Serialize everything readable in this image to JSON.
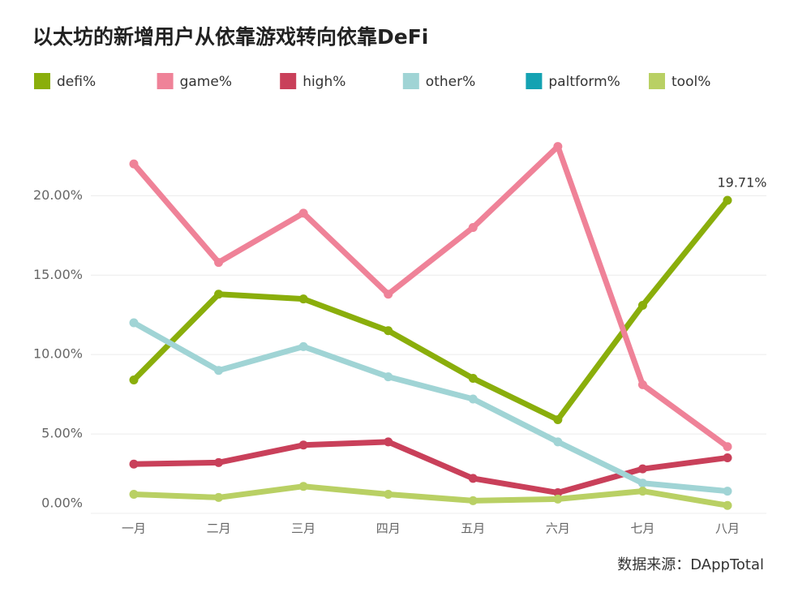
{
  "chart_data": {
    "type": "line",
    "title": "以太坊的新增用户从依靠游戏转向依靠DeFi",
    "source": "数据来源：DAppTotal",
    "categories": [
      "一月",
      "二月",
      "三月",
      "四月",
      "五月",
      "六月",
      "七月",
      "八月"
    ],
    "ylim": [
      0,
      24
    ],
    "yticks": [
      {
        "value": 0,
        "label": "0.00%"
      },
      {
        "value": 5,
        "label": "5.00%"
      },
      {
        "value": 10,
        "label": "10.00%"
      },
      {
        "value": 15,
        "label": "15.00%"
      },
      {
        "value": 20,
        "label": "20.00%"
      }
    ],
    "grid": true,
    "legend": "top",
    "series": [
      {
        "name": "defi%",
        "color": "#8aae0b",
        "values": [
          8.4,
          13.8,
          13.5,
          11.5,
          8.5,
          5.9,
          13.1,
          19.71
        ],
        "value_labels": [
          null,
          null,
          null,
          null,
          null,
          null,
          null,
          "19.71%"
        ]
      },
      {
        "name": "game%",
        "color": "#ef8298",
        "values": [
          22.0,
          15.8,
          18.9,
          13.8,
          18.0,
          23.1,
          8.1,
          4.2
        ]
      },
      {
        "name": "high%",
        "color": "#c9405a",
        "values": [
          3.1,
          3.2,
          4.3,
          4.5,
          2.2,
          1.3,
          2.8,
          3.5
        ]
      },
      {
        "name": "other%",
        "color": "#a0d4d5",
        "values": [
          12.0,
          9.0,
          10.5,
          8.6,
          7.2,
          4.5,
          1.9,
          1.4
        ]
      },
      {
        "name": "paltform%",
        "color": "#14a2b2",
        "values": [
          null,
          null,
          null,
          null,
          null,
          null,
          null,
          null
        ]
      },
      {
        "name": "tool%",
        "color": "#b9d064",
        "values": [
          1.2,
          1.0,
          1.7,
          1.2,
          0.8,
          0.9,
          1.4,
          0.5
        ]
      }
    ]
  }
}
